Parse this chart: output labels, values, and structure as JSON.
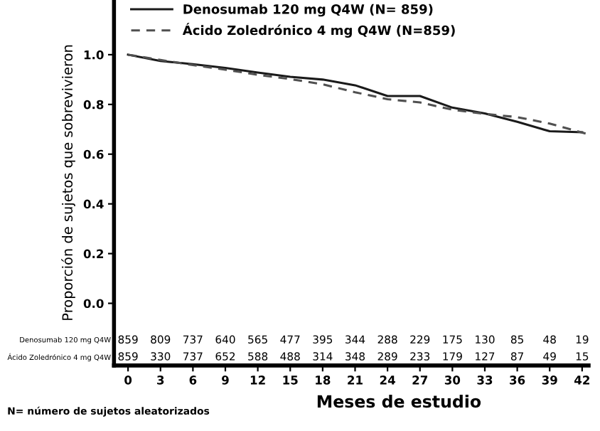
{
  "chart_data": {
    "type": "line",
    "xlabel": "Meses de estudio",
    "ylabel": "Proporción de sujetos que sobrevivieron",
    "xlim": [
      -1.3,
      42.6
    ],
    "ylim": [
      -0.25,
      1.22
    ],
    "xticks": [
      0,
      3,
      6,
      9,
      12,
      15,
      18,
      21,
      24,
      27,
      30,
      33,
      36,
      39,
      42
    ],
    "yticks": [
      {
        "value": 0,
        "label": "0.0"
      },
      {
        "value": 0.2,
        "label": "0.2"
      },
      {
        "value": 0.4,
        "label": "0.4"
      },
      {
        "value": 0.6,
        "label": "0.6"
      },
      {
        "value": 0.8,
        "label": "0.8"
      },
      {
        "value": 1.0,
        "label": "1.0"
      }
    ],
    "grid": false,
    "legend": "top left",
    "marker": "none",
    "x": [
      0,
      3,
      6,
      9,
      12,
      15,
      18,
      21,
      24,
      27,
      30,
      33,
      36,
      39,
      42
    ],
    "series": [
      {
        "name": "Denosumab 120 mg Q4W (N= 859)",
        "color": "#1a1a1a",
        "line_style": "solid",
        "values": [
          1.0,
          0.975,
          0.962,
          0.947,
          0.928,
          0.911,
          0.9,
          0.877,
          0.834,
          0.834,
          0.787,
          0.764,
          0.73,
          0.692,
          0.688
        ]
      },
      {
        "name": "Ácido Zoledrónico 4 mg Q4W (N=859)",
        "color": "#505050",
        "line_style": "dashed",
        "x": [
          0,
          3,
          6,
          9,
          12,
          15,
          18,
          21,
          24,
          27,
          30,
          33,
          36,
          39,
          42.5
        ],
        "values": [
          1.0,
          0.979,
          0.958,
          0.94,
          0.919,
          0.902,
          0.881,
          0.849,
          0.821,
          0.808,
          0.779,
          0.762,
          0.749,
          0.723,
          0.681
        ]
      }
    ],
    "annotations": [
      "Denosumab 120 mg Q4W",
      "859 809 737 640 565 477 395 344 288 229 175 130 85 48 19",
      "Ácido Zoledrónico 4 mg Q4W",
      "859 330 737 652 588 488 314 348 289 233 179 127 87 49 15",
      "N= número de sujetos aleatorizados"
    ]
  }
}
